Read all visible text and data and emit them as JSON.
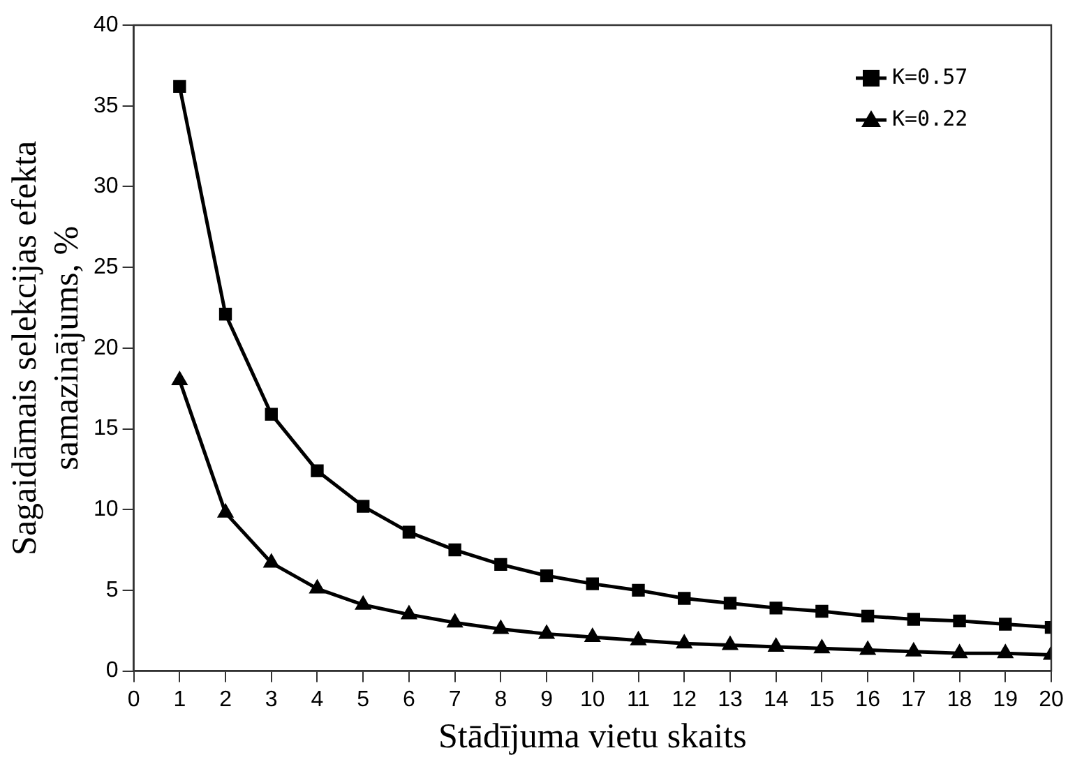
{
  "chart_data": {
    "type": "line",
    "xlabel": "Stādījuma vietu skaits",
    "ylabel": "Sagaidāmais selekcijas efekta\nsamazinājums, %",
    "x": [
      1,
      2,
      3,
      4,
      5,
      6,
      7,
      8,
      9,
      10,
      11,
      12,
      13,
      14,
      15,
      16,
      17,
      18,
      19,
      20
    ],
    "series": [
      {
        "name": "K=0.57",
        "color": "#000000",
        "marker": "square",
        "values": [
          36.2,
          22.1,
          15.9,
          12.4,
          10.2,
          8.6,
          7.5,
          6.6,
          5.9,
          5.4,
          5.0,
          4.5,
          4.2,
          3.9,
          3.7,
          3.4,
          3.2,
          3.1,
          2.9,
          2.7
        ]
      },
      {
        "name": "K=0.22",
        "color": "#000000",
        "marker": "triangle",
        "values": [
          18.0,
          9.8,
          6.7,
          5.1,
          4.1,
          3.5,
          3.0,
          2.6,
          2.3,
          2.1,
          1.9,
          1.7,
          1.6,
          1.5,
          1.4,
          1.3,
          1.2,
          1.1,
          1.1,
          1.0
        ]
      }
    ],
    "xlim": [
      0,
      20
    ],
    "xticks": [
      0,
      1,
      2,
      3,
      4,
      5,
      6,
      7,
      8,
      9,
      10,
      11,
      12,
      13,
      14,
      15,
      16,
      17,
      18,
      19,
      20
    ],
    "ylim": [
      0,
      40
    ],
    "yticks": [
      0,
      5,
      10,
      15,
      20,
      25,
      30,
      35,
      40
    ],
    "grid": false,
    "legend": "top right",
    "line_style": "solid"
  }
}
